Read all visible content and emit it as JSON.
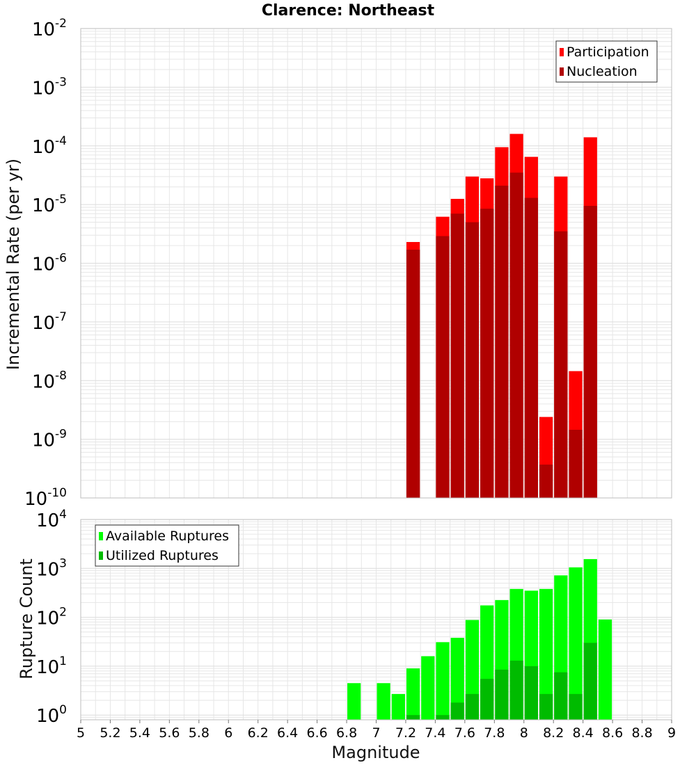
{
  "chart_data": [
    {
      "type": "bar",
      "title": "Clarence: Northeast",
      "xlabel": "Magnitude",
      "ylabel": "Incremental Rate (per yr)",
      "yscale": "log",
      "ylim": [
        1e-10,
        0.01
      ],
      "xlim": [
        5,
        9
      ],
      "grid": true,
      "legend_position": "top-right",
      "y_ticks": [
        {
          "base": "10",
          "exp": "-10"
        },
        {
          "base": "10",
          "exp": "-9"
        },
        {
          "base": "10",
          "exp": "-8"
        },
        {
          "base": "10",
          "exp": "-7"
        },
        {
          "base": "10",
          "exp": "-6"
        },
        {
          "base": "10",
          "exp": "-5"
        },
        {
          "base": "10",
          "exp": "-4"
        },
        {
          "base": "10",
          "exp": "-3"
        },
        {
          "base": "10",
          "exp": "-2"
        }
      ],
      "x": [
        7.25,
        7.45,
        7.55,
        7.65,
        7.75,
        7.85,
        7.95,
        8.05,
        8.15,
        8.25,
        8.35,
        8.45
      ],
      "series": [
        {
          "name": "Participation",
          "color": "#ff0000",
          "values": [
            2.3e-06,
            6.2e-06,
            1.25e-05,
            3e-05,
            2.8e-05,
            9.5e-05,
            0.00016,
            6.5e-05,
            2.4e-09,
            3e-05,
            1.45e-08,
            0.00014
          ]
        },
        {
          "name": "Nucleation",
          "color": "#b00000",
          "values": [
            1.7e-06,
            2.9e-06,
            7e-06,
            5e-06,
            8.5e-06,
            2.1e-05,
            3.5e-05,
            1.3e-05,
            3.7e-10,
            3.5e-06,
            1.45e-09,
            9.5e-06
          ]
        }
      ]
    },
    {
      "type": "bar",
      "xlabel": "Magnitude",
      "ylabel": "Rupture Count",
      "yscale": "log",
      "ylim": [
        0.8,
        10000
      ],
      "xlim": [
        5,
        9
      ],
      "grid": true,
      "legend_position": "top-left",
      "y_ticks": [
        {
          "base": "10",
          "exp": "0",
          "value": 1
        },
        {
          "base": "10",
          "exp": "1",
          "value": 10
        },
        {
          "base": "10",
          "exp": "2",
          "value": 100
        },
        {
          "base": "10",
          "exp": "3",
          "value": 1000
        },
        {
          "base": "10",
          "exp": "4",
          "value": 10000
        }
      ],
      "x_ticks": [
        "5",
        "5.2",
        "5.4",
        "5.6",
        "5.8",
        "6",
        "6.2",
        "6.4",
        "6.6",
        "6.8",
        "7",
        "7.2",
        "7.4",
        "7.6",
        "7.8",
        "8",
        "8.2",
        "8.4",
        "8.6",
        "8.8",
        "9"
      ],
      "x": [
        6.85,
        7.05,
        7.15,
        7.25,
        7.35,
        7.45,
        7.55,
        7.65,
        7.75,
        7.85,
        7.95,
        8.05,
        8.15,
        8.25,
        8.35,
        8.45,
        8.55
      ],
      "series": [
        {
          "name": "Available Ruptures",
          "color": "#00ff00",
          "values": [
            4.5,
            4.5,
            2.7,
            9,
            16,
            31,
            38,
            88,
            175,
            225,
            380,
            350,
            380,
            720,
            1050,
            1550,
            90
          ]
        },
        {
          "name": "Utilized Ruptures",
          "color": "#00bb00",
          "values": [
            null,
            null,
            null,
            1,
            null,
            1,
            1.8,
            2.7,
            5.5,
            8.5,
            13,
            10,
            2.7,
            7.5,
            2.7,
            30,
            null
          ]
        }
      ]
    }
  ]
}
